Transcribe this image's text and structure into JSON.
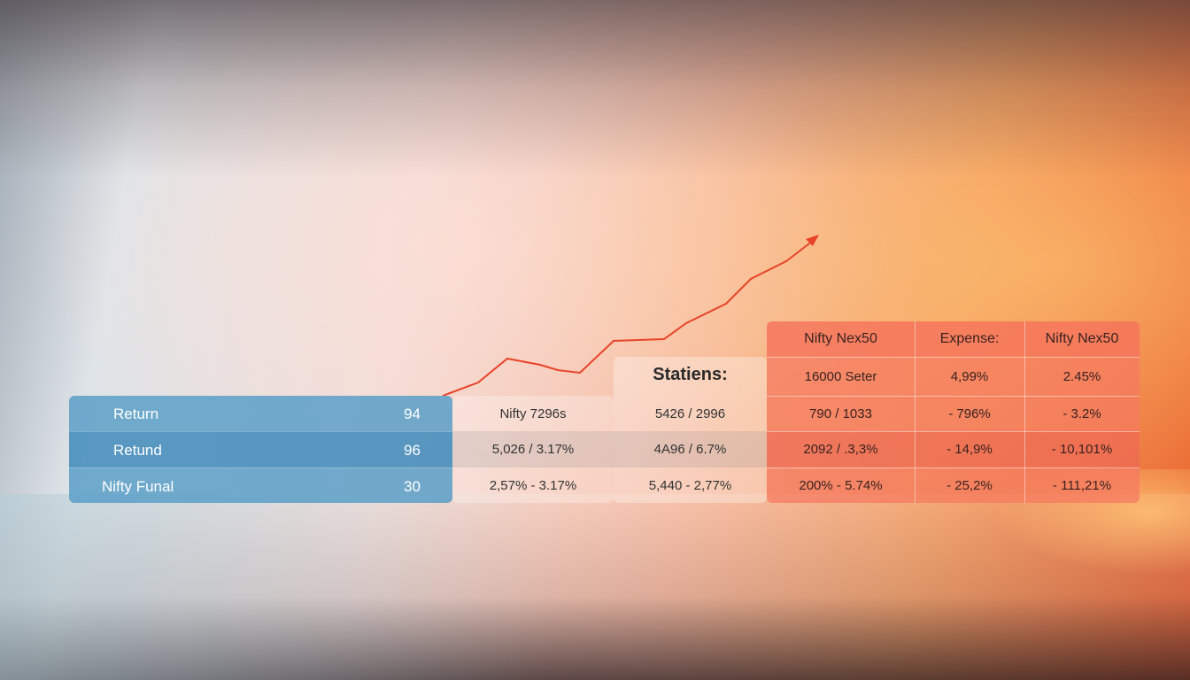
{
  "left_panel": {
    "rows": [
      {
        "label": "Return",
        "value": "94"
      },
      {
        "label": "Retund",
        "value": "96"
      },
      {
        "label": "Nifty Funal",
        "value": "30"
      }
    ]
  },
  "middle": {
    "title": "Statiens:",
    "col1": [
      "Nifty 7296s",
      "5,026 / 3.17%",
      "2,57% - 3.17%"
    ],
    "col2": [
      "5426 / 2996",
      "4A96 / 6.7%",
      "5,440 - 2,77%"
    ]
  },
  "right_table": {
    "headers": [
      "Nifty Nex50",
      "Expense:",
      "Nifty Nex50"
    ],
    "rows": [
      [
        "16000 Seter",
        "4,99%",
        "2.45%"
      ],
      [
        "790 / 1033",
        "- 796%",
        "- 3.2%"
      ],
      [
        "2092 / .3,3%",
        "- 14,9%",
        "- 10,101%"
      ],
      [
        "200% - 5.74%",
        "- 25,2%",
        "- 111,21%"
      ]
    ]
  },
  "colors": {
    "blue_panel": "#5ea0c8",
    "red_panel": "#f5785f",
    "trend_line": "#e8442a"
  }
}
